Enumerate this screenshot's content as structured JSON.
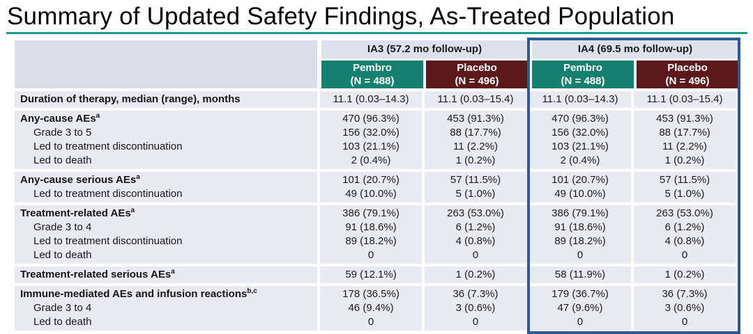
{
  "title": "Summary of Updated Safety Findings, As-Treated Population",
  "colors": {
    "title_rule_teal": "#199C8E",
    "pembro_teal": "#15806F",
    "placebo_maroon": "#5C181B",
    "ia4_highlight_border": "#2B5A97",
    "header_band_bg": "#DEE1EC",
    "row_bg": "#E9EAF1"
  },
  "table": {
    "column_groups": [
      {
        "label": "IA3 (57.2 mo follow-up)",
        "highlighted": false
      },
      {
        "label": "IA4 (69.5 mo follow-up)",
        "highlighted": true
      }
    ],
    "columns": [
      {
        "treatment": "Pembro",
        "n_label": "(N = 488)",
        "color": "#15806F"
      },
      {
        "treatment": "Placebo",
        "n_label": "(N = 496)",
        "color": "#5C181B"
      },
      {
        "treatment": "Pembro",
        "n_label": "(N = 488)",
        "color": "#15806F"
      },
      {
        "treatment": "Placebo",
        "n_label": "(N = 496)",
        "color": "#5C181B"
      }
    ],
    "row_groups": [
      {
        "rows": [
          {
            "label": "Duration of therapy, median (range), months",
            "sup": "",
            "bold": true,
            "indent": false,
            "values": [
              "11.1 (0.03–14.3)",
              "11.1 (0.03–15.4)",
              "11.1 (0.03–14.3)",
              "11.1 (0.03–15.4)"
            ]
          }
        ]
      },
      {
        "rows": [
          {
            "label": "Any-cause AEs",
            "sup": "a",
            "bold": true,
            "indent": false,
            "values": [
              "470 (96.3%)",
              "453 (91.3%)",
              "470 (96.3%)",
              "453 (91.3%)"
            ]
          },
          {
            "label": "Grade 3 to 5",
            "sup": "",
            "bold": false,
            "indent": true,
            "values": [
              "156 (32.0%)",
              "88 (17.7%)",
              "156 (32.0%)",
              "88 (17.7%)"
            ]
          },
          {
            "label": "Led to treatment discontinuation",
            "sup": "",
            "bold": false,
            "indent": true,
            "values": [
              "103 (21.1%)",
              "11 (2.2%)",
              "103 (21.1%)",
              "11 (2.2%)"
            ]
          },
          {
            "label": "Led to death",
            "sup": "",
            "bold": false,
            "indent": true,
            "values": [
              "2 (0.4%)",
              "1 (0.2%)",
              "2 (0.4%)",
              "1 (0.2%)"
            ]
          }
        ]
      },
      {
        "rows": [
          {
            "label": "Any-cause serious AEs",
            "sup": "a",
            "bold": true,
            "indent": false,
            "values": [
              "101 (20.7%)",
              "57 (11.5%)",
              "101 (20.7%)",
              "57 (11.5%)"
            ]
          },
          {
            "label": "Led to treatment discontinuation",
            "sup": "",
            "bold": false,
            "indent": true,
            "values": [
              "49 (10.0%)",
              "5 (1.0%)",
              "49 (10.0%)",
              "5 (1.0%)"
            ]
          }
        ]
      },
      {
        "rows": [
          {
            "label": "Treatment-related AEs",
            "sup": "a",
            "bold": true,
            "indent": false,
            "values": [
              "386 (79.1%)",
              "263 (53.0%)",
              "386 (79.1%)",
              "263 (53.0%)"
            ]
          },
          {
            "label": "Grade 3 to 4",
            "sup": "",
            "bold": false,
            "indent": true,
            "values": [
              "91 (18.6%)",
              "6 (1.2%)",
              "91 (18.6%)",
              "6 (1.2%)"
            ]
          },
          {
            "label": "Led to treatment discontinuation",
            "sup": "",
            "bold": false,
            "indent": true,
            "values": [
              "89 (18.2%)",
              "4 (0.8%)",
              "89 (18.2%)",
              "4 (0.8%)"
            ]
          },
          {
            "label": "Led to death",
            "sup": "",
            "bold": false,
            "indent": true,
            "values": [
              "0",
              "0",
              "0",
              "0"
            ]
          }
        ]
      },
      {
        "rows": [
          {
            "label": "Treatment-related serious AEs",
            "sup": "a",
            "bold": true,
            "indent": false,
            "values": [
              "59 (12.1%)",
              "1 (0.2%)",
              "58 (11.9%)",
              "1 (0.2%)"
            ]
          }
        ]
      },
      {
        "rows": [
          {
            "label": "Immune-mediated AEs and infusion reactions",
            "sup": "b,c",
            "bold": true,
            "indent": false,
            "values": [
              "178 (36.5%)",
              "36 (7.3%)",
              "179 (36.7%)",
              "36 (7.3%)"
            ]
          },
          {
            "label": "Grade 3 to 4",
            "sup": "",
            "bold": false,
            "indent": true,
            "values": [
              "46 (9.4%)",
              "3 (0.6%)",
              "47 (9.6%)",
              "3 (0.6%)"
            ]
          },
          {
            "label": "Led to death",
            "sup": "",
            "bold": false,
            "indent": true,
            "values": [
              "0",
              "0",
              "0",
              "0"
            ]
          }
        ]
      }
    ]
  }
}
